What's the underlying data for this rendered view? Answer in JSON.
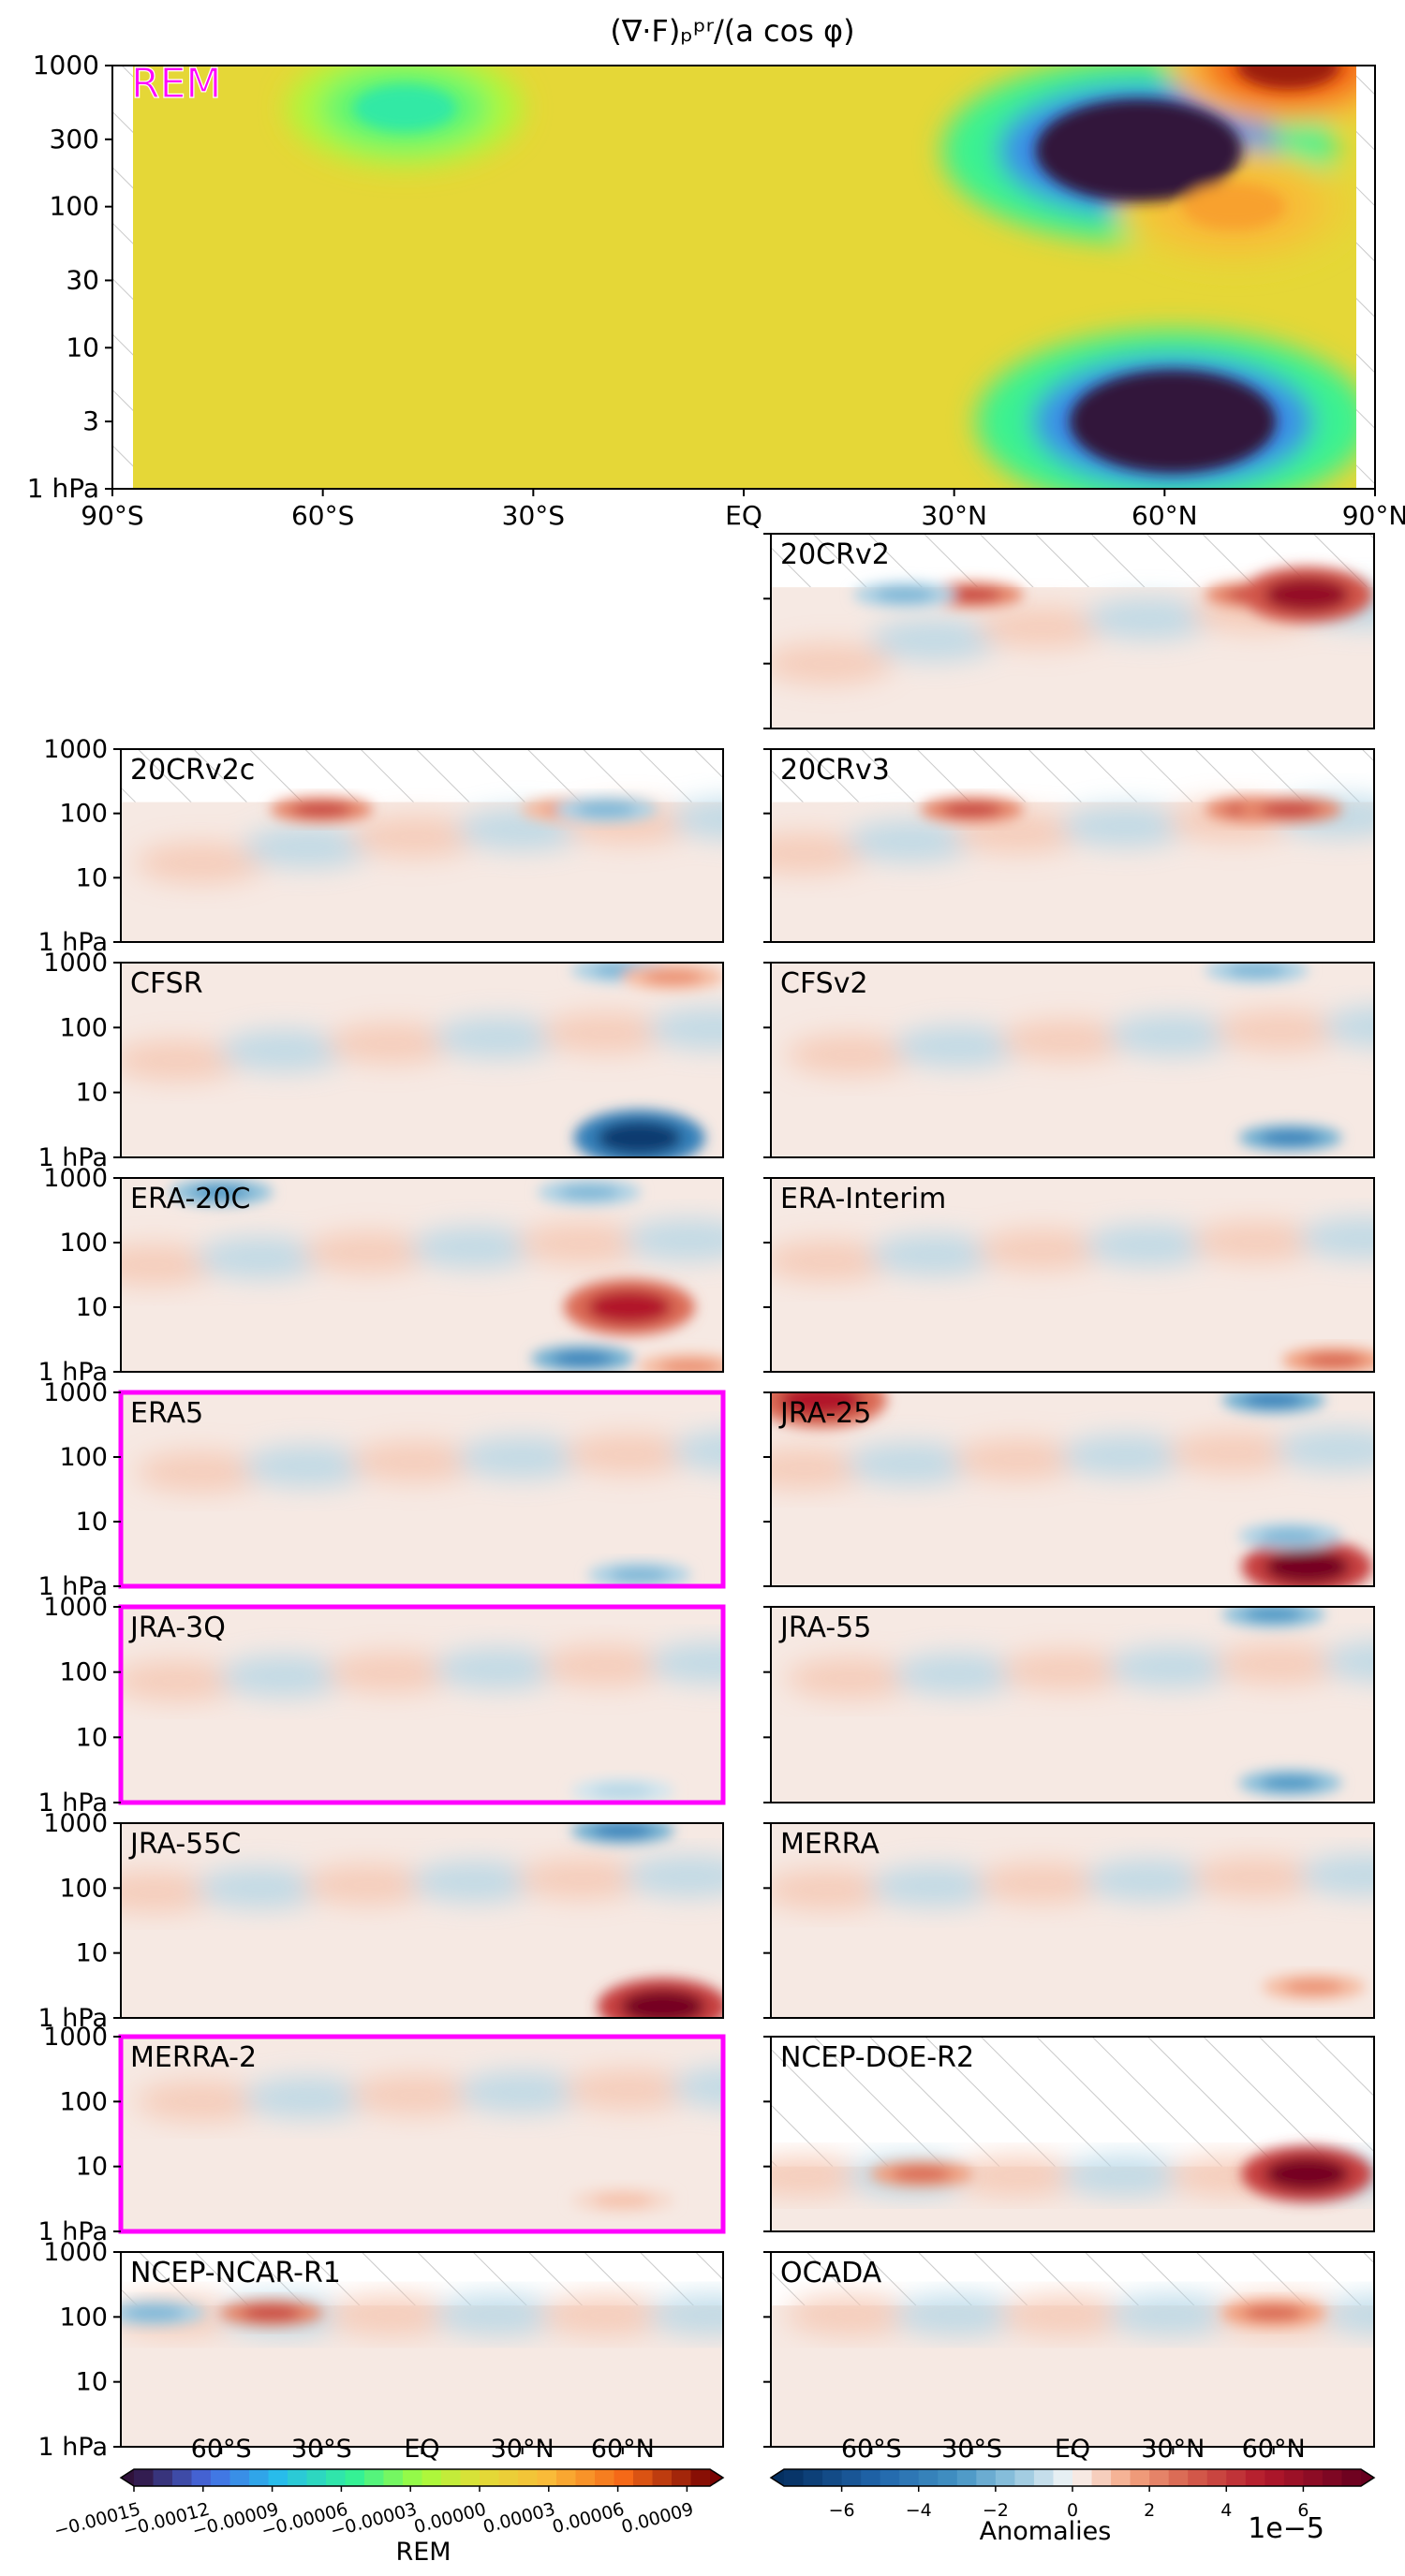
{
  "figure": {
    "title": "(∇·F)ₚᵖʳ/(a cos φ)"
  },
  "chart_data": [
    {
      "type": "heatmap",
      "name": "REM",
      "label": "REM",
      "highlighted_label": true,
      "x_ticks": [
        "90°S",
        "60°S",
        "30°S",
        "EQ",
        "30°N",
        "60°N",
        "90°N"
      ],
      "y_ticks": [
        "1 hPa",
        "3",
        "10",
        "30",
        "100",
        "300",
        "1000"
      ],
      "x_range": [
        -90,
        90
      ],
      "y_range_hPa": [
        1000,
        1
      ],
      "y_scale": "log",
      "features": [
        {
          "kind": "strong negative",
          "lat": 63,
          "p_hPa": 3,
          "value": -0.00015
        },
        {
          "kind": "strong negative",
          "lat": 58,
          "p_hPa": 250,
          "value": -0.00015
        },
        {
          "kind": "positive",
          "lat": 72,
          "p_hPa": 100,
          "value": 4e-05
        },
        {
          "kind": "positive",
          "lat": 80,
          "p_hPa": 1000,
          "value": 9e-05
        },
        {
          "kind": "negative",
          "lat": -50,
          "p_hPa": 500,
          "value": -6e-05
        }
      ]
    },
    {
      "type": "heatmap",
      "name": "20CRv2",
      "label": "20CRv2",
      "top_valid_hPa": 150,
      "features": [
        {
          "lat": -30,
          "p": 300,
          "v": 4e-05
        },
        {
          "lat": 55,
          "p": 300,
          "v": 4e-05
        },
        {
          "lat": 70,
          "p": 900,
          "v": 6e-05
        },
        {
          "lat": -50,
          "p": 700,
          "v": -2e-05
        }
      ]
    },
    {
      "type": "heatmap",
      "name": "20CRv2c",
      "label": "20CRv2c",
      "top_valid_hPa": 150,
      "features": [
        {
          "lat": -30,
          "p": 300,
          "v": 4e-05
        },
        {
          "lat": 55,
          "p": 300,
          "v": 4e-05
        },
        {
          "lat": 45,
          "p": 150,
          "v": 2e-05
        },
        {
          "lat": 55,
          "p": 700,
          "v": -2e-05
        }
      ]
    },
    {
      "type": "heatmap",
      "name": "20CRv3",
      "label": "20CRv3",
      "top_valid_hPa": 150,
      "features": [
        {
          "lat": -30,
          "p": 300,
          "v": 4e-05
        },
        {
          "lat": 55,
          "p": 300,
          "v": 4e-05
        },
        {
          "lat": 65,
          "p": 900,
          "v": 4e-05
        }
      ]
    },
    {
      "type": "heatmap",
      "name": "CFSR",
      "label": "CFSR",
      "features": [
        {
          "lat": 65,
          "p": 2,
          "v": -7e-05
        },
        {
          "lat": 60,
          "p": 900,
          "v": -2e-05
        },
        {
          "lat": 75,
          "p": 600,
          "v": 2e-05
        }
      ]
    },
    {
      "type": "heatmap",
      "name": "CFSv2",
      "label": "CFSv2",
      "features": [
        {
          "lat": 65,
          "p": 2,
          "v": -4e-05
        },
        {
          "lat": 55,
          "p": 900,
          "v": -2e-05
        }
      ]
    },
    {
      "type": "heatmap",
      "name": "ERA-20C",
      "label": "ERA-20C",
      "features": [
        {
          "lat": 48,
          "p": 1.6,
          "v": -4e-05
        },
        {
          "lat": 62,
          "p": 10,
          "v": 5e-05
        },
        {
          "lat": 80,
          "p": 1.2,
          "v": 2e-05
        },
        {
          "lat": -60,
          "p": 600,
          "v": -3e-05
        },
        {
          "lat": 50,
          "p": 600,
          "v": -2e-05
        }
      ]
    },
    {
      "type": "heatmap",
      "name": "ERA-Interim",
      "label": "ERA-Interim",
      "features": [
        {
          "lat": 78,
          "p": 1.5,
          "v": 3e-05
        }
      ]
    },
    {
      "type": "heatmap",
      "name": "ERA5",
      "label": "ERA5",
      "highlighted": true,
      "features": [
        {
          "lat": 65,
          "p": 1.5,
          "v": -2e-05
        }
      ]
    },
    {
      "type": "heatmap",
      "name": "JRA-25",
      "label": "JRA-25",
      "features": [
        {
          "lat": 70,
          "p": 2,
          "v": 7e-05
        },
        {
          "lat": 65,
          "p": 6,
          "v": -2e-05
        },
        {
          "lat": -75,
          "p": 900,
          "v": 5e-05
        },
        {
          "lat": 60,
          "p": 1000,
          "v": -4e-05
        }
      ]
    },
    {
      "type": "heatmap",
      "name": "JRA-3Q",
      "label": "JRA-3Q",
      "highlighted": true,
      "features": [
        {
          "lat": 60,
          "p": 1.5,
          "v": -1e-05
        }
      ]
    },
    {
      "type": "heatmap",
      "name": "JRA-55",
      "label": "JRA-55",
      "features": [
        {
          "lat": 65,
          "p": 2,
          "v": -3e-05
        },
        {
          "lat": 60,
          "p": 1000,
          "v": -3e-05
        }
      ]
    },
    {
      "type": "heatmap",
      "name": "JRA-55C",
      "label": "JRA-55C",
      "features": [
        {
          "lat": 72,
          "p": 1.5,
          "v": 7e-05
        },
        {
          "lat": 60,
          "p": 1000,
          "v": -4e-05
        }
      ]
    },
    {
      "type": "heatmap",
      "name": "MERRA",
      "label": "MERRA",
      "features": [
        {
          "lat": 72,
          "p": 3,
          "v": 2e-05
        }
      ]
    },
    {
      "type": "heatmap",
      "name": "MERRA-2",
      "label": "MERRA-2",
      "highlighted": true,
      "features": [
        {
          "lat": 60,
          "p": 3,
          "v": 1e-05
        }
      ]
    },
    {
      "type": "heatmap",
      "name": "NCEP-DOE-R2",
      "label": "NCEP-DOE-R2",
      "top_valid_hPa": 10,
      "features": [
        {
          "lat": 70,
          "p": 12,
          "v": 7e-05
        },
        {
          "lat": -45,
          "p": 250,
          "v": 3e-05
        }
      ]
    },
    {
      "type": "heatmap",
      "name": "NCEP-NCAR-R1",
      "label": "NCEP-NCAR-R1",
      "top_valid_hPa": 150,
      "features": [
        {
          "lat": -45,
          "p": 250,
          "v": 4e-05
        },
        {
          "lat": -80,
          "p": 600,
          "v": -2e-05
        }
      ]
    },
    {
      "type": "heatmap",
      "name": "OCADA",
      "label": "OCADA",
      "top_valid_hPa": 150,
      "features": [
        {
          "lat": 60,
          "p": 200,
          "v": 3e-05
        }
      ]
    }
  ],
  "axes": {
    "y_ticks_small": [
      "1 hPa",
      "10",
      "100",
      "1000"
    ],
    "x_ticks_bottom": [
      "60°S",
      "30°S",
      "EQ",
      "30°N",
      "60°N"
    ]
  },
  "colorbar_rem": {
    "label": "REM",
    "ticks": [
      "−0.00015",
      "−0.00012",
      "−0.00009",
      "−0.00006",
      "−0.00003",
      "0.00000",
      "0.00003",
      "0.00006",
      "0.00009"
    ],
    "tick_values": [
      -0.00015,
      -0.00012,
      -9e-05,
      -6e-05,
      -3e-05,
      0,
      3e-05,
      6e-05,
      9e-05
    ],
    "range": [
      -0.00015,
      0.0001
    ]
  },
  "colorbar_anom": {
    "label": "Anomalies",
    "ticks": [
      "−6",
      "−4",
      "−2",
      "0",
      "2",
      "4",
      "6"
    ],
    "tick_values": [
      -6,
      -4,
      -2,
      0,
      2,
      4,
      6
    ],
    "range": [
      -7.5,
      7.5
    ],
    "exponent": "1e−5"
  },
  "colors": {
    "highlight": "#ff00ff",
    "hatch": "#c9c9c9"
  }
}
